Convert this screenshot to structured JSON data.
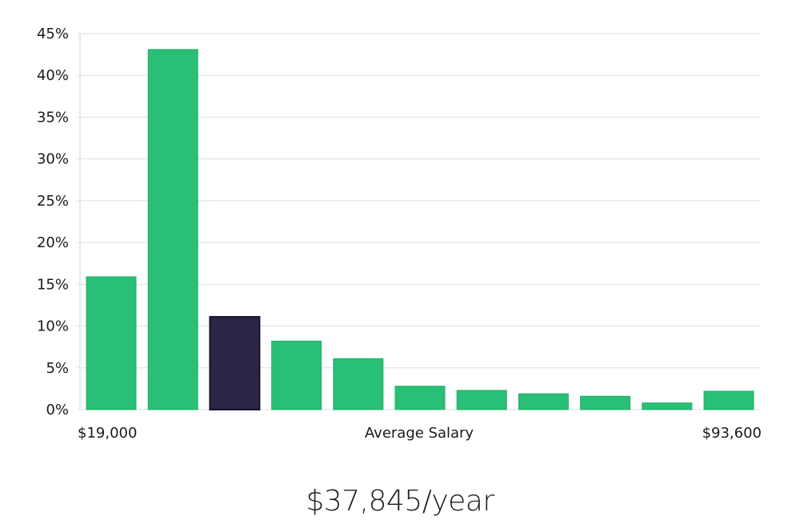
{
  "chart_data": {
    "type": "bar",
    "categories": [
      "1",
      "2",
      "3",
      "4",
      "5",
      "6",
      "7",
      "8",
      "9",
      "10",
      "11"
    ],
    "values": [
      15.9,
      43.1,
      11.1,
      8.2,
      6.1,
      2.8,
      2.3,
      1.9,
      1.6,
      0.8,
      2.2
    ],
    "highlight_index": 2,
    "ylim": [
      0,
      45
    ],
    "yticks": [
      0,
      5,
      10,
      15,
      20,
      25,
      30,
      35,
      40,
      45
    ],
    "ytick_suffix": "%",
    "grid": true,
    "xlabel_left": "$19,000",
    "xlabel_center": "Average Salary",
    "xlabel_right": "$93,600",
    "colors": {
      "bar": "#2abf76",
      "bar_border": "#23b06a",
      "highlight": "#2a2645",
      "highlight_border": "#15132a"
    }
  },
  "summary": {
    "salary_text": "$37,845/year"
  }
}
